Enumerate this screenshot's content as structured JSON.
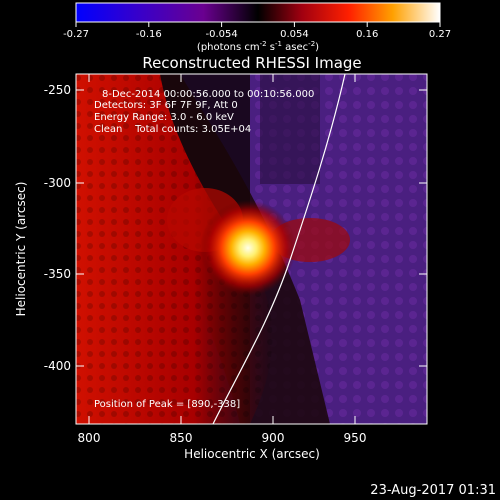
{
  "colorbar": {
    "ticks": [
      "-0.27",
      "-0.16",
      "-0.054",
      "0.054",
      "0.16",
      "0.27"
    ],
    "units_prefix": "(photons cm",
    "units_exp1": "-2",
    "units_mid": " s",
    "units_exp2": "-1",
    "units_mid2": " asec",
    "units_exp3": "-2",
    "units_suffix": ")"
  },
  "title": "Reconstructed RHESSI Image",
  "annotations": {
    "time_range": "8-Dec-2014 00:00:56.000 to 00:10:56.000",
    "detectors": "Detectors: 3F 6F 7F 9F, Att 0",
    "energy": "Energy Range: 3.0 - 6.0 keV",
    "clean": "Clean    Total counts: 3.05E+04",
    "peak": "Position of Peak = [890,-338]"
  },
  "axes": {
    "xlabel": "Heliocentric X (arcsec)",
    "ylabel": "Heliocentric Y (arcsec)",
    "x_ticks": [
      "800",
      "850",
      "900",
      "950"
    ],
    "y_ticks": [
      "-250",
      "-300",
      "-350",
      "-400"
    ]
  },
  "timestamp": "23-Aug-2017 01:31"
}
